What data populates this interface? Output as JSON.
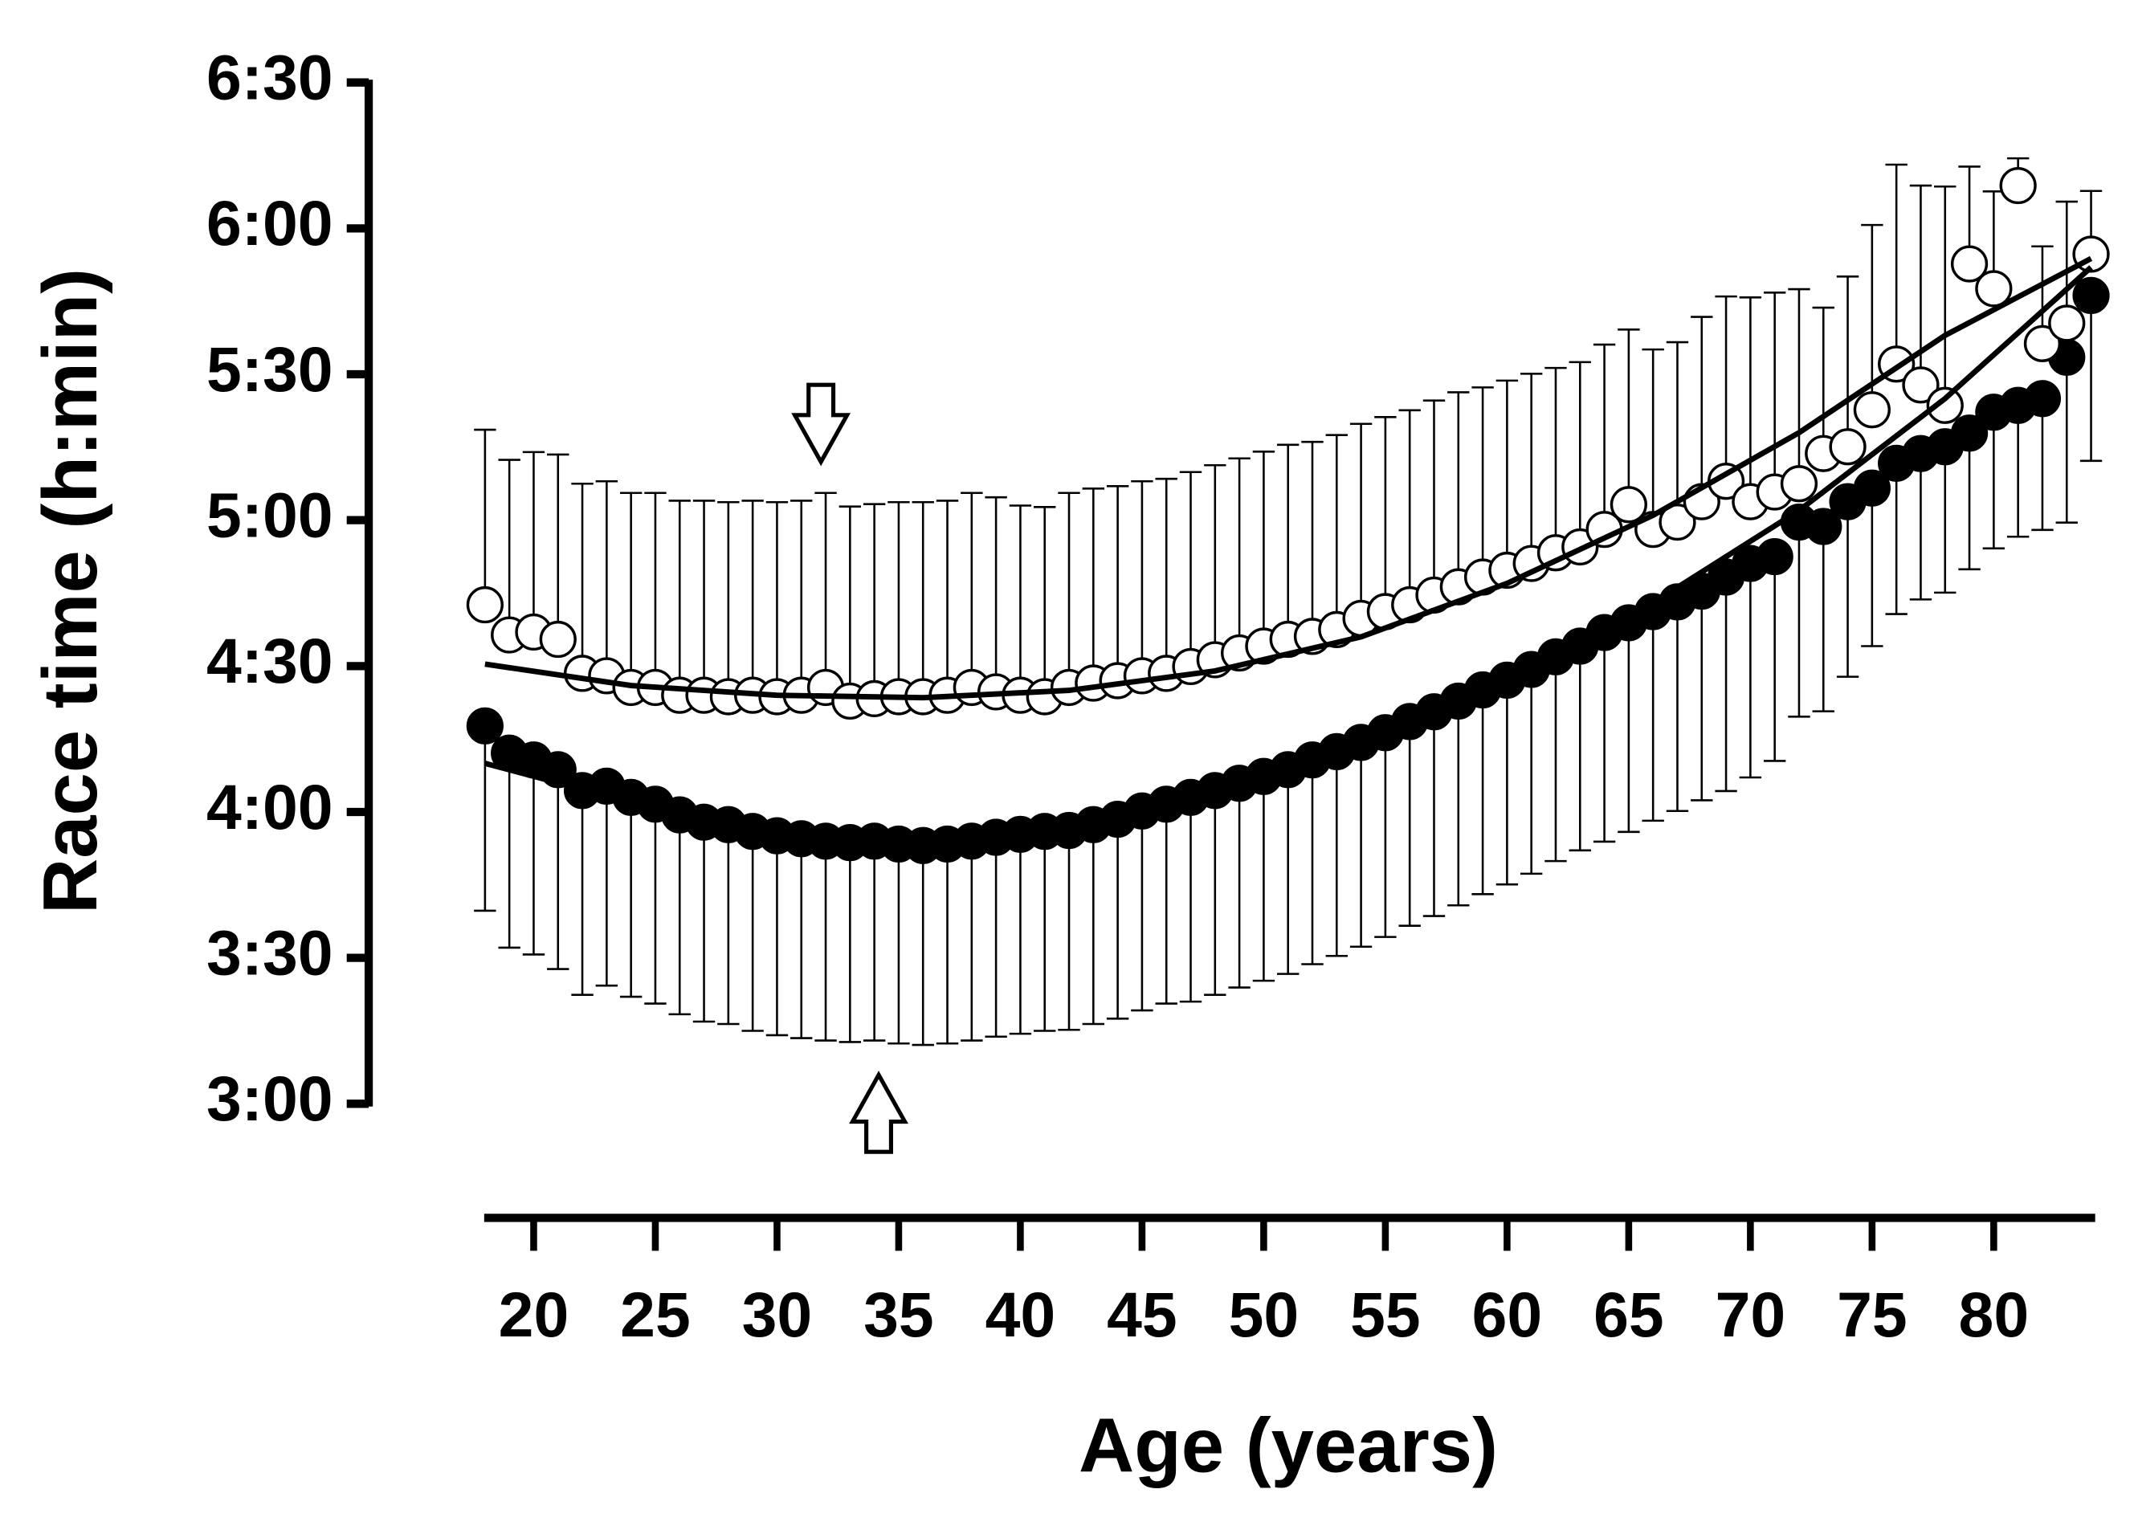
{
  "chart_data": {
    "type": "scatter",
    "ylabel": "Race time (h:min)",
    "xlabel": "Age (years)",
    "xlim": [
      18,
      84
    ],
    "xticks": [
      20,
      25,
      30,
      35,
      40,
      45,
      50,
      55,
      60,
      65,
      70,
      75,
      80
    ],
    "ylim": [
      180,
      390
    ],
    "yticks": [
      {
        "value": 180,
        "label": "3:00"
      },
      {
        "value": 210,
        "label": "3:30"
      },
      {
        "value": 240,
        "label": "4:00"
      },
      {
        "value": 270,
        "label": "4:30"
      },
      {
        "value": 300,
        "label": "5:00"
      },
      {
        "value": 330,
        "label": "5:30"
      },
      {
        "value": 360,
        "label": "6:00"
      },
      {
        "value": 390,
        "label": "6:30"
      }
    ],
    "x": [
      18,
      19,
      20,
      21,
      22,
      23,
      24,
      25,
      26,
      27,
      28,
      29,
      30,
      31,
      32,
      33,
      34,
      35,
      36,
      37,
      38,
      39,
      40,
      41,
      42,
      43,
      44,
      45,
      46,
      47,
      48,
      49,
      50,
      51,
      52,
      53,
      54,
      55,
      56,
      57,
      58,
      59,
      60,
      61,
      62,
      63,
      64,
      65,
      66,
      67,
      68,
      69,
      70,
      71,
      72,
      73,
      74,
      75,
      76,
      77,
      78,
      79,
      80,
      81,
      82,
      83,
      84
    ],
    "fit_x": [
      18,
      24,
      30,
      36,
      42,
      48,
      54,
      60,
      66,
      72,
      78,
      84
    ],
    "series": [
      {
        "marker": "open",
        "color": "#000000",
        "error_direction": "up",
        "values": [
          282.6,
          276.4,
          277,
          275.5,
          268.5,
          268,
          265.6,
          265.6,
          264,
          264,
          263.7,
          264,
          263.7,
          264,
          265.6,
          262.8,
          263.3,
          263.7,
          263.7,
          264,
          265.6,
          264.7,
          264,
          263.7,
          265.6,
          266.5,
          267,
          268,
          268.5,
          269.9,
          271.3,
          272.7,
          274.1,
          275.5,
          276.1,
          277.5,
          279.8,
          281.2,
          282.6,
          284.6,
          286.3,
          288.3,
          289.7,
          291.1,
          293.3,
          294.5,
          298.1,
          303.2,
          298.1,
          299.6,
          303.8,
          308,
          303.8,
          305.8,
          307.5,
          313.7,
          315.1,
          322.7,
          332.1,
          327.8,
          323.6,
          352.7,
          347.6,
          368.8,
          336.3,
          340.5,
          354.7
        ],
        "errors": [
          36,
          36,
          37,
          38,
          39,
          40,
          40,
          40,
          40,
          40,
          40,
          40,
          40,
          40,
          40,
          40,
          40,
          40,
          40,
          40,
          40,
          40,
          39,
          39,
          40,
          40,
          40,
          40,
          40,
          40,
          40,
          40,
          40,
          40,
          40,
          40,
          40,
          40,
          40,
          40,
          40,
          39,
          39,
          39,
          38,
          38,
          38,
          36,
          37,
          37,
          38,
          38,
          42,
          41,
          40,
          30,
          35,
          38,
          41,
          41,
          45,
          20,
          20,
          5.6,
          20,
          25,
          13
        ],
        "fit": [
          270.4,
          266,
          264,
          263.5,
          265,
          269,
          276,
          287,
          301,
          318,
          338,
          353.8
        ]
      },
      {
        "marker": "filled",
        "color": "#000000",
        "error_direction": "down",
        "values": [
          257.7,
          252.1,
          250.7,
          248.7,
          244.4,
          245.3,
          243,
          241.6,
          239.4,
          237.9,
          237.4,
          236,
          235.1,
          234.5,
          234,
          233.7,
          234,
          233.4,
          233.1,
          233.4,
          234,
          234.8,
          235.4,
          236,
          236.2,
          237.4,
          238.5,
          240.2,
          241.6,
          243,
          244.4,
          245.9,
          247.3,
          248.7,
          250.7,
          252.4,
          254.3,
          256.3,
          258.6,
          260.6,
          262.8,
          265.1,
          267.1,
          269.3,
          271.9,
          274.1,
          276.9,
          278.9,
          281.2,
          283.2,
          285.4,
          288.3,
          291.1,
          292.5,
          299.6,
          298.7,
          303.8,
          306.6,
          311.7,
          313.7,
          315.1,
          317.9,
          322.2,
          323.6,
          325,
          333.5,
          346.2
        ],
        "errors": [
          38,
          40,
          40,
          41,
          42,
          41,
          41,
          41,
          41,
          41,
          41,
          41,
          41,
          41,
          41,
          41,
          41,
          41,
          41,
          41,
          41,
          41,
          41,
          41,
          41,
          41,
          41,
          41,
          41,
          42,
          42,
          42,
          42,
          42,
          42,
          42,
          42,
          42,
          42,
          42,
          42,
          42,
          42,
          42,
          42,
          42,
          43,
          43,
          43,
          43,
          43,
          44,
          44,
          42,
          40,
          38,
          36,
          32.5,
          31,
          30,
          30,
          28,
          28,
          27,
          27,
          34,
          34
        ],
        "fit": [
          250,
          242,
          236,
          233.5,
          235,
          242,
          253,
          267,
          283,
          302,
          325,
          352
        ]
      }
    ]
  }
}
